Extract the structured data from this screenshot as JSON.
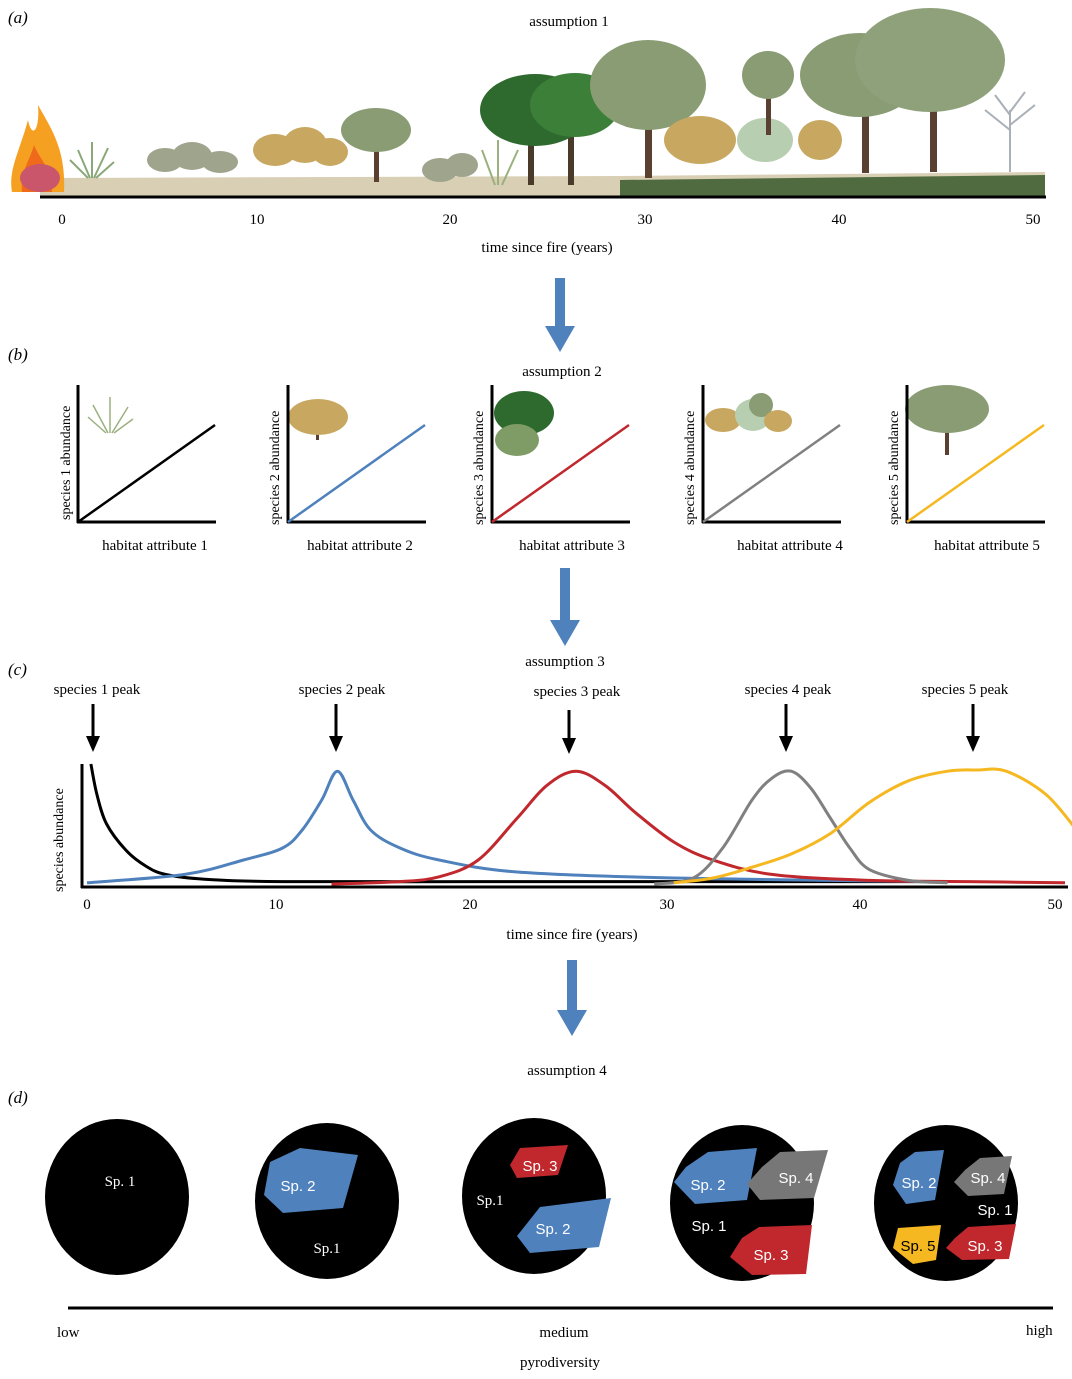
{
  "panel_a": {
    "label": "(a)",
    "assumption": "assumption 1",
    "ticks": [
      "0",
      "10",
      "20",
      "30",
      "40",
      "50"
    ],
    "xlabel": "time since fire (years)"
  },
  "panel_b": {
    "label": "(b)",
    "assumption": "assumption 2",
    "plots": [
      {
        "ylabel": "species 1 abundance",
        "xlabel": "habitat attribute 1",
        "color": "#000000",
        "plant": "grass-icon"
      },
      {
        "ylabel": "species 2 abundance",
        "xlabel": "habitat attribute 2",
        "color": "#4f81bd",
        "plant": "shrub-icon"
      },
      {
        "ylabel": "species 3 abundance",
        "xlabel": "habitat attribute 3",
        "color": "#c0282d",
        "plant": "dense-shrub-icon"
      },
      {
        "ylabel": "species 4 abundance",
        "xlabel": "habitat attribute 4",
        "color": "#808080",
        "plant": "mixed-shrub-icon"
      },
      {
        "ylabel": "species 5 abundance",
        "xlabel": "habitat attribute 5",
        "color": "#f5b820",
        "plant": "tree-icon"
      }
    ]
  },
  "panel_c": {
    "label": "(c)",
    "assumption": "assumption 3",
    "peaks": [
      "species 1 peak",
      "species 2 peak",
      "species 3 peak",
      "species 4 peak",
      "species 5 peak"
    ],
    "ylabel": "species abundance",
    "xlabel": "time since fire (years)",
    "ticks": [
      "0",
      "10",
      "20",
      "30",
      "40",
      "50"
    ]
  },
  "panel_d": {
    "label": "(d)",
    "assumption": "assumption 4",
    "sp1": "Sp. 1",
    "sp1_alt": "Sp.1",
    "sp2": "Sp. 2",
    "sp3": "Sp. 3",
    "sp4": "Sp. 4",
    "sp5": "Sp. 5",
    "axis_low": "low",
    "axis_medium": "medium",
    "axis_high": "high",
    "axis_label": "pyrodiversity"
  },
  "chart_data": {
    "type": "line",
    "xlabel": "time since fire (years)",
    "ylabel": "species abundance",
    "xlim": [
      0,
      50
    ],
    "series": [
      {
        "color": "#000000",
        "x": [
          0.2,
          0.5,
          1,
          2,
          3,
          4,
          6,
          10,
          20,
          30,
          43
        ],
        "values": [
          1.0,
          0.75,
          0.5,
          0.28,
          0.15,
          0.08,
          0.04,
          0.02,
          0.02,
          0.02,
          0.02
        ]
      },
      {
        "color": "#4f81bd",
        "x": [
          0,
          5,
          8,
          10,
          11,
          12,
          12.8,
          13.6,
          14.5,
          16,
          18,
          22,
          30,
          43
        ],
        "values": [
          0.01,
          0.08,
          0.2,
          0.3,
          0.45,
          0.7,
          0.94,
          0.7,
          0.45,
          0.3,
          0.2,
          0.1,
          0.05,
          0.02
        ]
      },
      {
        "color": "#c0282d",
        "x": [
          12.5,
          16,
          18,
          20,
          22,
          23.5,
          25,
          26.5,
          28,
          30,
          32,
          35,
          40,
          45,
          50
        ],
        "values": [
          0.0,
          0.02,
          0.06,
          0.2,
          0.55,
          0.82,
          0.94,
          0.82,
          0.6,
          0.35,
          0.2,
          0.08,
          0.03,
          0.02,
          0.01
        ]
      },
      {
        "color": "#808080",
        "x": [
          29,
          31,
          32.5,
          34,
          35,
          36,
          37,
          38,
          39,
          40,
          42,
          44
        ],
        "values": [
          0.0,
          0.05,
          0.3,
          0.7,
          0.88,
          0.94,
          0.8,
          0.55,
          0.3,
          0.12,
          0.03,
          0.01
        ]
      },
      {
        "color": "#f5b820",
        "x": [
          30,
          32,
          34,
          36,
          38,
          40,
          42,
          44,
          45.5,
          47,
          49,
          50.5
        ],
        "values": [
          0.01,
          0.05,
          0.14,
          0.25,
          0.42,
          0.68,
          0.86,
          0.94,
          0.95,
          0.94,
          0.75,
          0.47
        ]
      }
    ]
  }
}
